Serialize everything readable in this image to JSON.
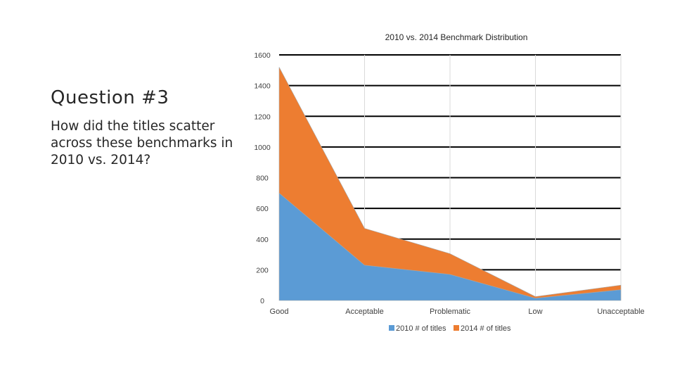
{
  "slide": {
    "heading": "Question #3",
    "question": "How did the titles scatter across these benchmarks in 2010 vs. 2014?"
  },
  "chart_data": {
    "type": "area",
    "stacked": true,
    "title": "2010 vs. 2014 Benchmark Distribution",
    "xlabel": "",
    "ylabel": "",
    "categories": [
      "Good",
      "Acceptable",
      "Problematic",
      "Low",
      "Unacceptable"
    ],
    "y_ticks": [
      0,
      200,
      400,
      600,
      800,
      1000,
      1200,
      1400,
      1600
    ],
    "ylim": [
      0,
      1600
    ],
    "grid": true,
    "legend_position": "bottom",
    "series": [
      {
        "name": "2010 # of titles",
        "values": [
          700,
          230,
          170,
          15,
          70
        ],
        "color": "#5b9bd5"
      },
      {
        "name": "2014 # of titles",
        "values": [
          820,
          240,
          135,
          10,
          30
        ],
        "color": "#ed7d31"
      }
    ]
  }
}
